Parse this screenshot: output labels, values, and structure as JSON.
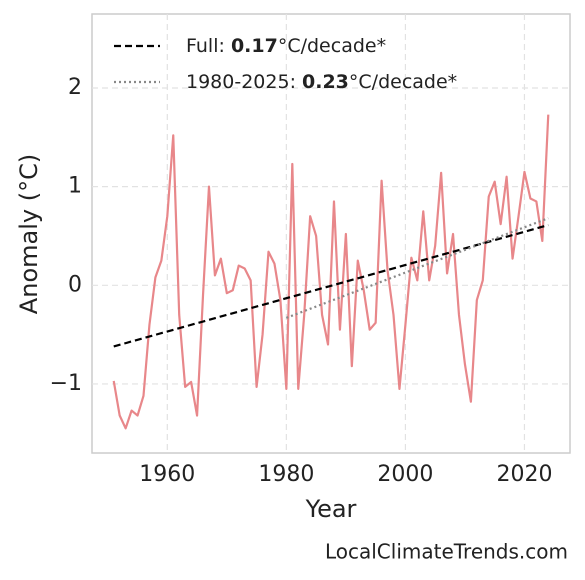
{
  "chart_data": {
    "type": "line",
    "x": [
      1951,
      1952,
      1953,
      1954,
      1955,
      1956,
      1957,
      1958,
      1959,
      1960,
      1961,
      1962,
      1963,
      1964,
      1965,
      1966,
      1967,
      1968,
      1969,
      1970,
      1971,
      1972,
      1973,
      1974,
      1975,
      1976,
      1977,
      1978,
      1979,
      1980,
      1981,
      1982,
      1983,
      1984,
      1985,
      1986,
      1987,
      1988,
      1989,
      1990,
      1991,
      1992,
      1993,
      1994,
      1995,
      1996,
      1997,
      1998,
      1999,
      2000,
      2001,
      2002,
      2003,
      2004,
      2005,
      2006,
      2007,
      2008,
      2009,
      2010,
      2011,
      2012,
      2013,
      2014,
      2015,
      2016,
      2017,
      2018,
      2019,
      2020,
      2021,
      2022,
      2023,
      2024
    ],
    "series": [
      {
        "color": "#e8878a",
        "style": "solid",
        "values": [
          -0.97,
          -1.32,
          -1.45,
          -1.27,
          -1.32,
          -1.12,
          -0.4,
          0.08,
          0.25,
          0.7,
          1.52,
          -0.3,
          -1.03,
          -0.98,
          -1.32,
          -0.1,
          1.0,
          0.1,
          0.27,
          -0.08,
          -0.05,
          0.2,
          0.17,
          0.05,
          -1.03,
          -0.5,
          0.34,
          0.22,
          -0.15,
          -1.05,
          1.23,
          -1.05,
          -0.3,
          0.7,
          0.5,
          -0.3,
          -0.6,
          0.85,
          -0.45,
          0.52,
          -0.82,
          0.25,
          -0.05,
          -0.45,
          -0.38,
          1.06,
          0.15,
          -0.3,
          -1.05,
          -0.4,
          0.28,
          0.05,
          0.75,
          0.05,
          0.4,
          1.14,
          0.12,
          0.52,
          -0.3,
          -0.8,
          -1.18,
          -0.15,
          0.05,
          0.9,
          1.05,
          0.62,
          1.1,
          0.27,
          0.7,
          1.15,
          0.88,
          0.85,
          0.45,
          1.73
        ]
      },
      {
        "name": [
          {
            "text": "Full: "
          },
          {
            "text": "0.17",
            "bold": true
          },
          {
            "text": "°C/decade*"
          }
        ],
        "color": "#000000",
        "style": "dashed",
        "x": [
          1951,
          2024
        ],
        "values": [
          -0.62,
          0.61
        ]
      },
      {
        "name": [
          {
            "text": "1980-2025: "
          },
          {
            "text": "0.23",
            "bold": true
          },
          {
            "text": "°C/decade*"
          }
        ],
        "color": "#888888",
        "style": "dotted",
        "x": [
          1980,
          2024
        ],
        "values": [
          -0.33,
          0.68
        ]
      }
    ],
    "x_label": "Year",
    "y_label": "Anomaly (°C)",
    "annotation": "LocalClimateTrends.com",
    "xlim": [
      1947.35,
      2027.65
    ],
    "ylim": [
      -1.7,
      2.75
    ],
    "xticks": [
      1960,
      1980,
      2000,
      2020
    ],
    "yticks": [
      {
        "value": -1,
        "label": "−1"
      },
      0,
      1,
      2
    ],
    "grid": true,
    "legend": "upper left"
  }
}
